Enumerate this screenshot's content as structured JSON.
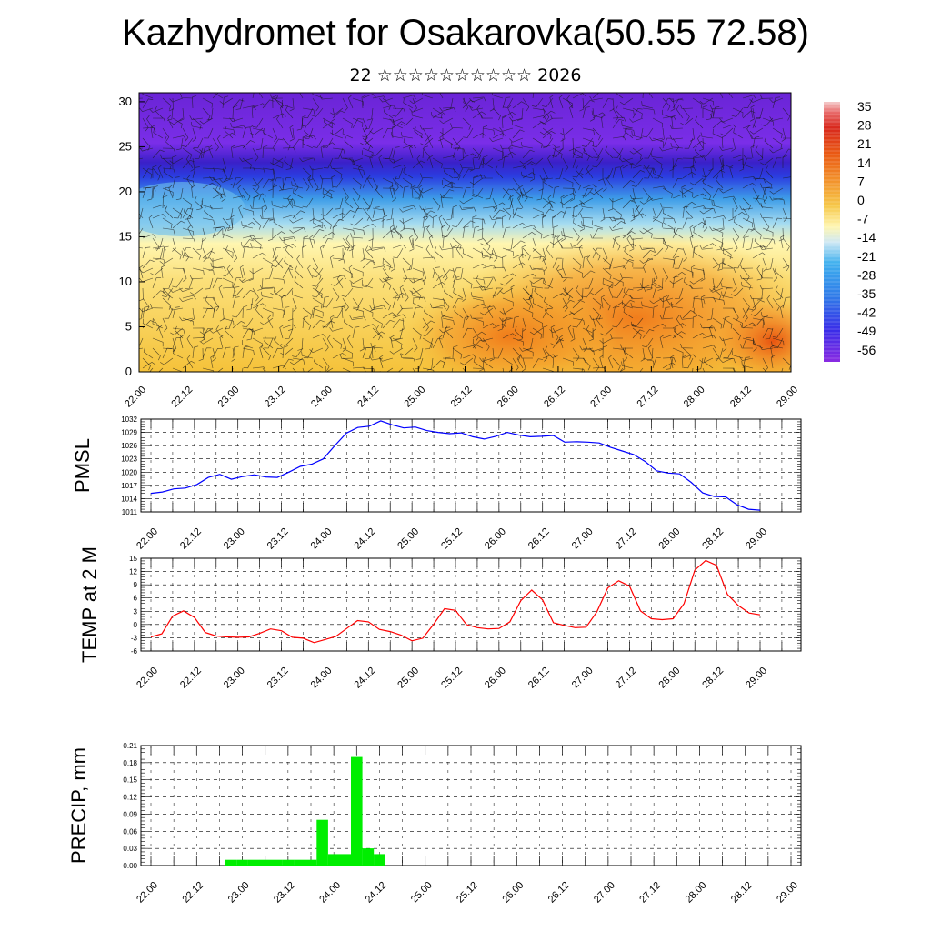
{
  "title": "Kazhydromet for Osakarovka(50.55 72.58)",
  "subtitle": "22 ☆☆☆☆☆☆☆☆☆☆ 2026",
  "x_tick_labels": [
    "22.00",
    "22.12",
    "23.00",
    "23.12",
    "24.00",
    "24.12",
    "25.00",
    "25.12",
    "26.00",
    "26.12",
    "27.00",
    "27.12",
    "28.00",
    "28.12",
    "29.00"
  ],
  "colors": {
    "pmsl_line": "#0000ff",
    "temp_line": "#ff0000",
    "precip_bar": "#00ee00",
    "grid": "#000000"
  },
  "chart_data": [
    {
      "type": "heatmap",
      "name": "vertical-cross-section",
      "xlabel": "",
      "ylabel": "",
      "y_ticks": [
        0,
        5,
        10,
        15,
        20,
        25,
        30
      ],
      "ylim": [
        0,
        31
      ],
      "colorbar_labels": [
        "35",
        "28",
        "21",
        "14",
        "7",
        "0",
        "-7",
        "-14",
        "-21",
        "-28",
        "-35",
        "-42",
        "-49",
        "-56"
      ],
      "colorbar_range": [
        -60,
        38
      ],
      "overlay": "wind barbs"
    },
    {
      "type": "line",
      "ylabel": "PMSL",
      "ylim": [
        1011,
        1032
      ],
      "y_ticks": [
        "1011",
        "1014",
        "1017",
        "1020",
        "1023",
        "1026",
        "1029",
        "1032"
      ],
      "series": [
        {
          "values": [
            1015.2,
            1015.5,
            1016.2,
            1016.4,
            1017.2,
            1018.8,
            1019.5,
            1018.4,
            1019.0,
            1019.4,
            1018.9,
            1018.8,
            1020.0,
            1021.3,
            1021.8,
            1023.0,
            1026.0,
            1028.8,
            1030.1,
            1030.4,
            1031.6,
            1030.7,
            1030.0,
            1030.2,
            1029.4,
            1029.0,
            1028.7,
            1028.9,
            1028.0,
            1027.5,
            1028.1,
            1029.0,
            1028.4,
            1028.0,
            1028.1,
            1028.3,
            1026.8,
            1026.9,
            1026.8,
            1026.6,
            1025.6,
            1024.8,
            1024.0,
            1022.4,
            1020.3,
            1019.8,
            1019.6,
            1017.7,
            1015.3,
            1014.5,
            1014.4,
            1012.6,
            1011.6,
            1011.4
          ]
        }
      ]
    },
    {
      "type": "line",
      "ylabel": "TEMP at 2 M",
      "ylim": [
        -6,
        15
      ],
      "y_ticks": [
        "-6",
        "-3",
        "0",
        "3",
        "6",
        "9",
        "12",
        "15"
      ],
      "series": [
        {
          "values": [
            -2.8,
            -2.1,
            1.9,
            3.1,
            1.6,
            -1.8,
            -2.6,
            -2.8,
            -2.9,
            -2.8,
            -2.0,
            -1.0,
            -1.4,
            -2.9,
            -3.1,
            -4.1,
            -3.4,
            -2.7,
            -0.9,
            0.9,
            0.6,
            -1.1,
            -1.6,
            -2.4,
            -3.7,
            -3.1,
            0.1,
            3.6,
            3.2,
            0.0,
            -0.7,
            -1.0,
            -0.9,
            0.6,
            5.4,
            7.8,
            5.6,
            0.4,
            -0.2,
            -0.7,
            -0.6,
            2.9,
            8.3,
            9.9,
            8.7,
            3.1,
            1.3,
            1.1,
            1.3,
            4.7,
            12.3,
            14.5,
            13.4,
            6.8,
            4.3,
            2.6,
            2.2
          ]
        }
      ]
    },
    {
      "type": "bar",
      "ylabel": "PRECIP, mm",
      "ylim": [
        0,
        0.21
      ],
      "y_ticks": [
        "0.00",
        "0.03",
        "0.06",
        "0.09",
        "0.12",
        "0.15",
        "0.18",
        "0.21"
      ],
      "series": [
        {
          "values": [
            0,
            0,
            0,
            0,
            0,
            0,
            0,
            0.01,
            0.01,
            0.01,
            0.01,
            0.01,
            0.01,
            0.01,
            0.01,
            0.08,
            0.02,
            0.02,
            0.19,
            0.03,
            0.02,
            0,
            0,
            0,
            0,
            0,
            0,
            0,
            0,
            0,
            0,
            0,
            0,
            0,
            0,
            0,
            0,
            0,
            0,
            0,
            0,
            0,
            0,
            0,
            0,
            0,
            0,
            0,
            0,
            0,
            0,
            0,
            0,
            0,
            0,
            0,
            0
          ]
        }
      ]
    }
  ]
}
